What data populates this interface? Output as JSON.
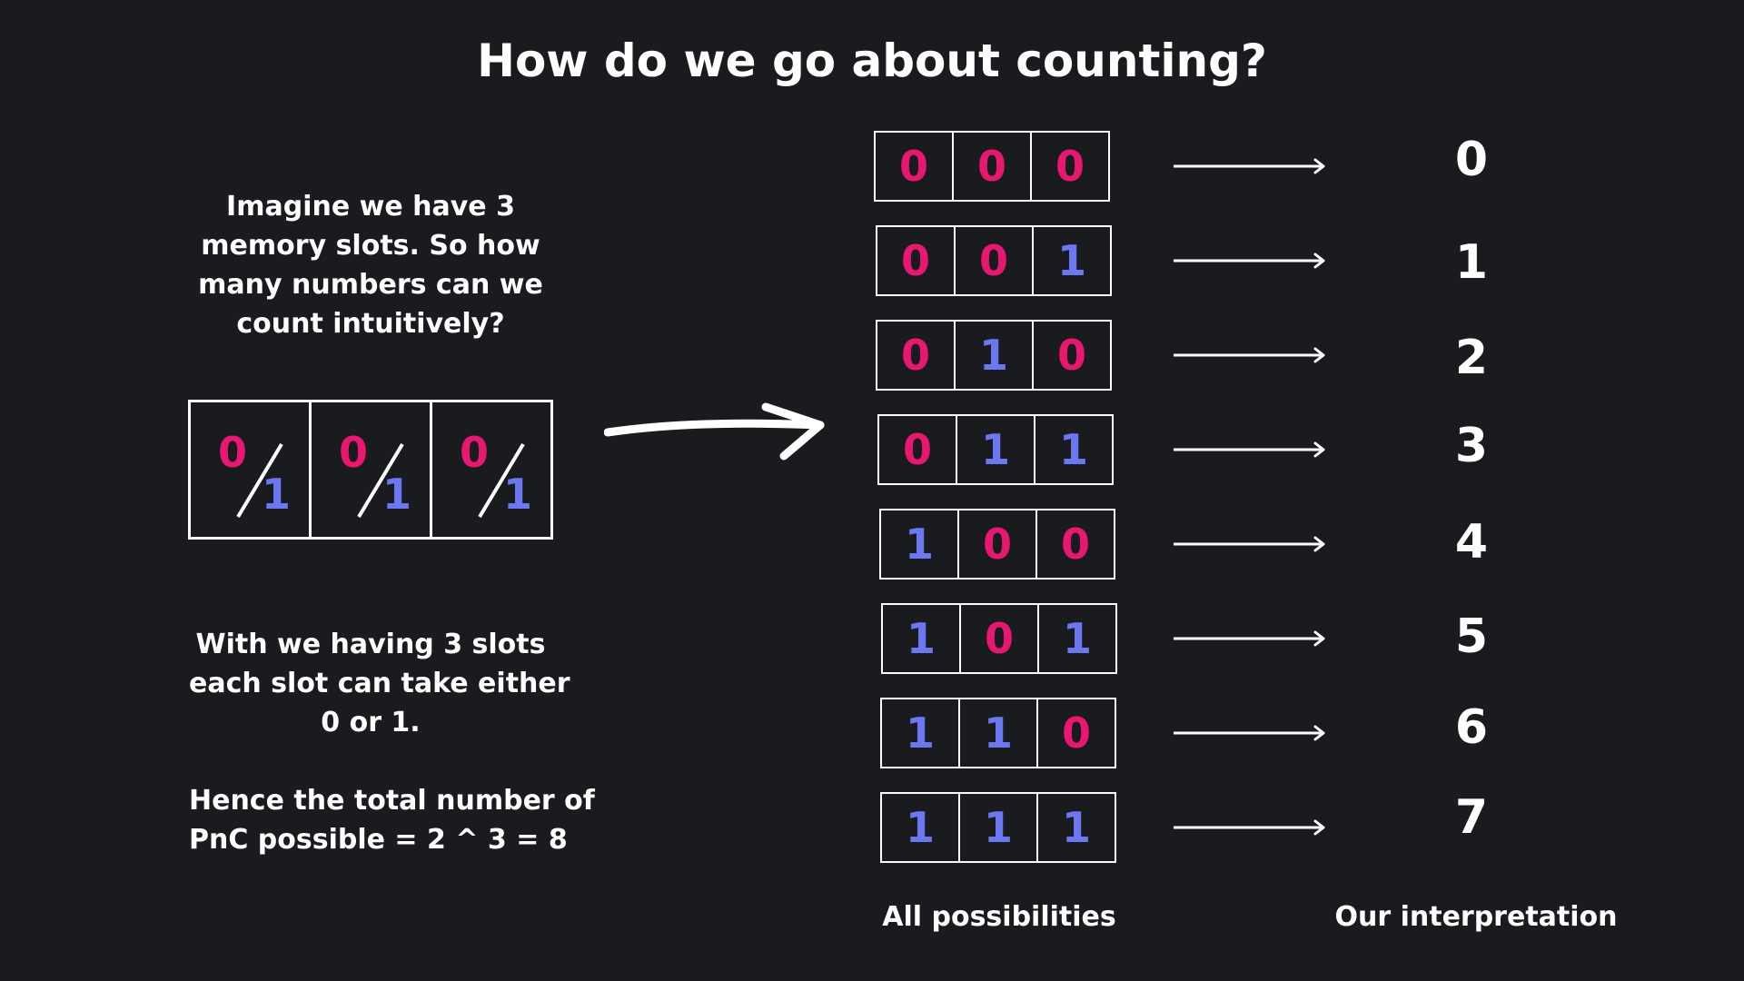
{
  "title": "How do we go about counting?",
  "intro_lines": [
    "Imagine we have 3",
    "memory slots. So how",
    "many numbers can we",
    "count intuitively?"
  ],
  "slot_diagram": {
    "zero": "0",
    "one": "1"
  },
  "explanation_lines": [
    "With we having 3 slots",
    "each slot can take either",
    "0 or 1."
  ],
  "conclusion_lines": [
    "Hence the total number of",
    "PnC possible = 2 ^ 3 = 8"
  ],
  "rows": [
    {
      "bits": [
        "0",
        "0",
        "0"
      ],
      "value": "0"
    },
    {
      "bits": [
        "0",
        "0",
        "1"
      ],
      "value": "1"
    },
    {
      "bits": [
        "0",
        "1",
        "0"
      ],
      "value": "2"
    },
    {
      "bits": [
        "0",
        "1",
        "1"
      ],
      "value": "3"
    },
    {
      "bits": [
        "1",
        "0",
        "0"
      ],
      "value": "4"
    },
    {
      "bits": [
        "1",
        "0",
        "1"
      ],
      "value": "5"
    },
    {
      "bits": [
        "1",
        "1",
        "0"
      ],
      "value": "6"
    },
    {
      "bits": [
        "1",
        "1",
        "1"
      ],
      "value": "7"
    }
  ],
  "captions": {
    "possibilities": "All possibilities",
    "interpretation": "Our interpretation"
  },
  "colors": {
    "background": "#1a1b1f",
    "zero": "#e8176f",
    "one": "#6c78f2",
    "text": "#ffffff"
  }
}
